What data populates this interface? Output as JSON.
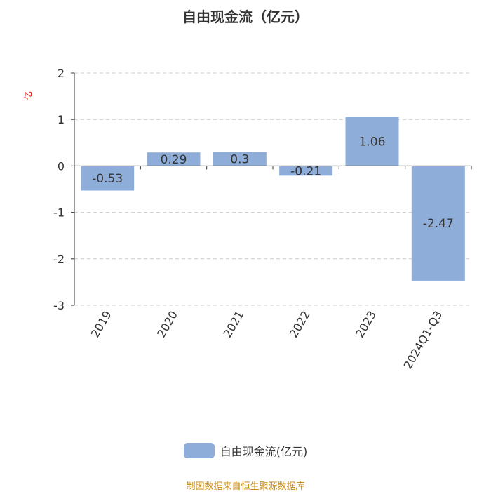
{
  "chart_data": {
    "type": "bar",
    "title": "自由现金流（亿元）",
    "ylabel": "亿",
    "categories": [
      "2019",
      "2020",
      "2021",
      "2022",
      "2023",
      "2024Q1-Q3"
    ],
    "series": [
      {
        "name": "自由现金流(亿元)",
        "values": [
          -0.53,
          0.29,
          0.3,
          -0.21,
          1.06,
          -2.47
        ],
        "data_labels": [
          "-0.53",
          "0.29",
          "0.3",
          "-0.21",
          "1.06",
          "-2.47"
        ],
        "color": "#8eadd9"
      }
    ],
    "ylim": [
      -3,
      2
    ],
    "yticks": [
      2,
      1,
      0,
      -1,
      -2,
      -3
    ],
    "grid": true,
    "legend_position": "bottom"
  },
  "legend": {
    "label": "自由现金流(亿元)",
    "color": "#8eadd9"
  },
  "source": "制图数据来自恒生聚源数据库",
  "colors": {
    "title": "#333333",
    "unit": "#e60000",
    "source": "#c8860a",
    "grid": "#cccccc",
    "axis": "#333333"
  }
}
